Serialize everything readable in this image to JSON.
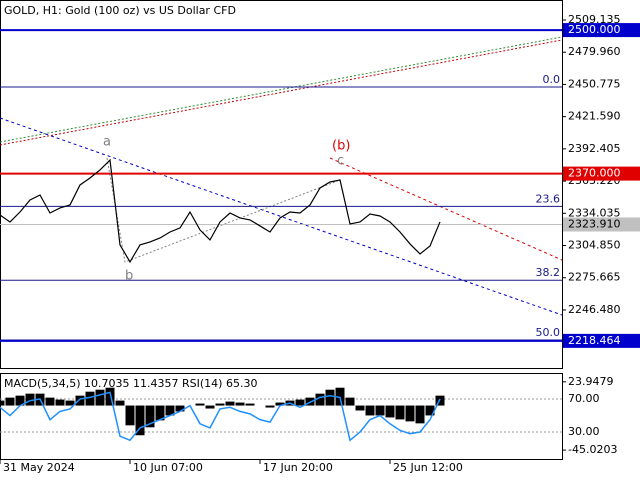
{
  "chart_data": [
    {
      "type": "line",
      "title": "GOLD, H1:  Gold (100 oz) vs US Dollar CFD",
      "categories": [
        "31 May 2024",
        null,
        null,
        null,
        null,
        null,
        null,
        null,
        null,
        null,
        null,
        null,
        null,
        "10 Jun 07:00",
        null,
        null,
        null,
        null,
        null,
        null,
        null,
        null,
        null,
        null,
        null,
        null,
        "17 Jun 20:00",
        null,
        null,
        null,
        null,
        null,
        null,
        null,
        null,
        null,
        null,
        null,
        null,
        "25 Jun 12:00",
        null,
        null,
        null,
        null,
        null
      ],
      "series": [
        {
          "name": "GOLD",
          "color": "#000000",
          "values": [
            2332.5,
            2326.2,
            2335.2,
            2346.1,
            2350.6,
            2334.3,
            2338.9,
            2341.6,
            2359.7,
            2366.0,
            2373.3,
            2382.3,
            2305.4,
            2290.0,
            2305.4,
            2308.1,
            2311.7,
            2317.1,
            2320.8,
            2335.2,
            2319.0,
            2309.9,
            2326.2,
            2334.3,
            2329.8,
            2328.0,
            2322.6,
            2317.1,
            2329.8,
            2335.2,
            2334.3,
            2341.6,
            2357.0,
            2362.4,
            2364.2,
            2324.4,
            2326.2,
            2333.4,
            2331.6,
            2326.2,
            2317.1,
            2306.3,
            2297.2,
            2304.4,
            2326.2
          ]
        }
      ],
      "ylim": [
        2193.9,
        2527.25
      ],
      "yticks": [
        2509.135,
        {
          "value": 2479.96,
          "label": "2479.960"
        },
        2450.775,
        {
          "value": 2421.59,
          "label": "2421.590"
        },
        2392.405,
        {
          "value": 2363.22,
          "label": "2363.220"
        },
        2334.035,
        {
          "value": 2304.85,
          "label": "2304.850"
        },
        2275.665,
        {
          "value": 2246.48,
          "label": "2246.480"
        }
      ],
      "hlines": [
        {
          "value": 2500,
          "label": "2500.000",
          "color": "#0000cc"
        },
        {
          "value": 2370,
          "label": "2370.000",
          "color": "#e00000"
        },
        {
          "value": 2218.464,
          "label": "2218.464",
          "color": "#0000cc"
        },
        {
          "value": 2323.91,
          "label": "2323.910",
          "color": "#c0c0c0"
        }
      ],
      "fib_levels": [
        {
          "value": 2448.4,
          "label": "0.0"
        },
        {
          "value": 2340.3,
          "label": "23.6"
        },
        {
          "value": 2273.4,
          "label": "38.2"
        },
        {
          "value": 2219.3,
          "label": "50.0"
        }
      ],
      "wave_labels": [
        "a",
        "b",
        "c",
        "(b)"
      ]
    },
    {
      "type": "bar+line",
      "title": "MACD(5,34,5) 10.7035 11.4357 RSI(14) 65.30",
      "series": [
        {
          "name": "MACD",
          "color": "#000000",
          "values": [
            5,
            8,
            10,
            12,
            12,
            8,
            6,
            5,
            10,
            14,
            16,
            18,
            5,
            -20,
            -30,
            -22,
            -15,
            -10,
            -6,
            0,
            2,
            -3,
            2,
            4,
            3,
            2,
            0,
            -2,
            3,
            5,
            6,
            8,
            12,
            16,
            18,
            8,
            -5,
            -10,
            -10,
            -12,
            -14,
            -16,
            -18,
            -10,
            10
          ]
        },
        {
          "name": "RSI",
          "color": "#1e90ff",
          "axis": "y2",
          "values": [
            60,
            50,
            62,
            68,
            70,
            45,
            55,
            58,
            70,
            72,
            75,
            78,
            25,
            20,
            35,
            40,
            45,
            50,
            55,
            62,
            40,
            35,
            58,
            60,
            55,
            52,
            45,
            42,
            62,
            65,
            60,
            66,
            72,
            74,
            72,
            20,
            30,
            45,
            50,
            40,
            32,
            28,
            30,
            45,
            70
          ]
        }
      ],
      "ylim": [
        -55.0,
        30.85
      ],
      "yticks": [
        23.9479,
        -45.0203
      ],
      "y2lim": [
        -3.9,
        99.1
      ],
      "y2ticks": [
        {
          "value": 70,
          "label": "70.00"
        },
        {
          "value": 30,
          "label": "30.00"
        }
      ]
    }
  ]
}
